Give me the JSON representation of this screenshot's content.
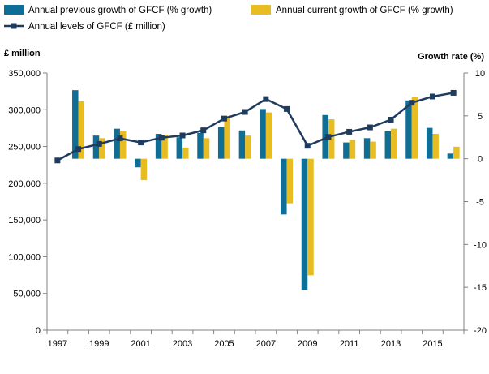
{
  "chart_data": {
    "type": "bar",
    "x": [
      1997,
      1998,
      1999,
      2000,
      2001,
      2002,
      2003,
      2004,
      2005,
      2006,
      2007,
      2008,
      2009,
      2010,
      2011,
      2012,
      2013,
      2014,
      2015,
      2016
    ],
    "x_tick_labels": [
      "1997",
      "1999",
      "2001",
      "2003",
      "2005",
      "2007",
      "2009",
      "2011",
      "2013",
      "2015"
    ],
    "y_left": {
      "label": "£ million",
      "ylim": [
        0,
        350000
      ],
      "ticks": [
        "0",
        "50,000",
        "100,000",
        "150,000",
        "200,000",
        "250,000",
        "300,000",
        "350,000"
      ]
    },
    "y_right": {
      "label": "Growth rate (%)",
      "ylim": [
        -20,
        10
      ],
      "ticks": [
        "-20",
        "-15",
        "-10",
        "-5",
        "0",
        "5"
      ]
    },
    "series": [
      {
        "name": "Annual previous growth of GFCF (% growth)",
        "type": "bar",
        "axis": "right",
        "color": "#0F6E96",
        "values": [
          null,
          8.0,
          2.7,
          3.5,
          -1.0,
          2.9,
          2.5,
          3.0,
          3.7,
          3.3,
          5.8,
          -6.5,
          -15.3,
          5.1,
          1.9,
          2.4,
          3.2,
          6.8,
          3.6,
          0.6
        ]
      },
      {
        "name": "Annual current growth of GFCF (% growth)",
        "type": "bar",
        "axis": "right",
        "color": "#E8BD24",
        "values": [
          null,
          6.7,
          2.4,
          3.2,
          -2.5,
          2.8,
          1.3,
          2.4,
          5.0,
          2.7,
          5.4,
          -5.2,
          -13.6,
          4.6,
          2.2,
          2.0,
          3.5,
          7.2,
          2.9,
          1.4
        ]
      },
      {
        "name": "Annual levels of GFCF (£ million)",
        "type": "line",
        "axis": "left",
        "color": "#1F3C5E",
        "values": [
          231000,
          246500,
          253500,
          261000,
          255500,
          262000,
          265000,
          272000,
          288000,
          297000,
          314500,
          301000,
          251000,
          263000,
          270000,
          276000,
          286500,
          309500,
          318000,
          323000
        ]
      }
    ],
    "legend_position": "top",
    "grid": false
  }
}
